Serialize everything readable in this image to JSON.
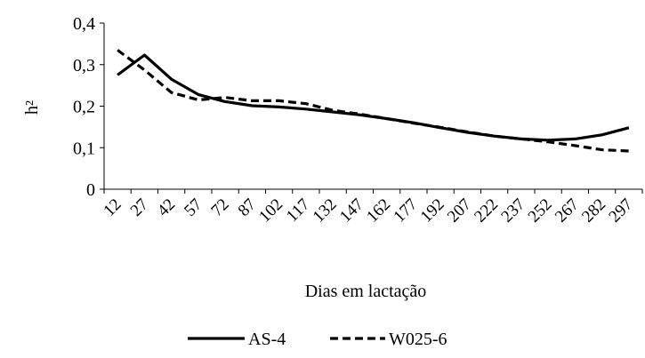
{
  "chart_data": {
    "type": "line",
    "title": "",
    "xlabel": "Dias em lactação",
    "ylabel": "h²",
    "ylim": [
      0,
      0.4
    ],
    "yticks": [
      "0",
      "0,1",
      "0,2",
      "0,3",
      "0,4"
    ],
    "ytick_values": [
      0,
      0.1,
      0.2,
      0.3,
      0.4
    ],
    "categories": [
      "12",
      "27",
      "42",
      "57",
      "72",
      "87",
      "102",
      "117",
      "132",
      "147",
      "162",
      "177",
      "192",
      "207",
      "222",
      "237",
      "252",
      "267",
      "282",
      "297"
    ],
    "grid": false,
    "legend_position": "bottom",
    "series": [
      {
        "name": "AS-4",
        "style": "solid",
        "color": "#000000",
        "values": [
          0.275,
          0.323,
          0.265,
          0.228,
          0.211,
          0.201,
          0.198,
          0.193,
          0.186,
          0.179,
          0.17,
          0.16,
          0.148,
          0.137,
          0.128,
          0.121,
          0.118,
          0.121,
          0.131,
          0.148
        ]
      },
      {
        "name": "W025-6",
        "style": "dashed",
        "color": "#000000",
        "values": [
          0.335,
          0.287,
          0.233,
          0.215,
          0.221,
          0.213,
          0.213,
          0.206,
          0.19,
          0.181,
          0.17,
          0.159,
          0.149,
          0.138,
          0.128,
          0.121,
          0.114,
          0.105,
          0.095,
          0.092
        ]
      }
    ]
  }
}
